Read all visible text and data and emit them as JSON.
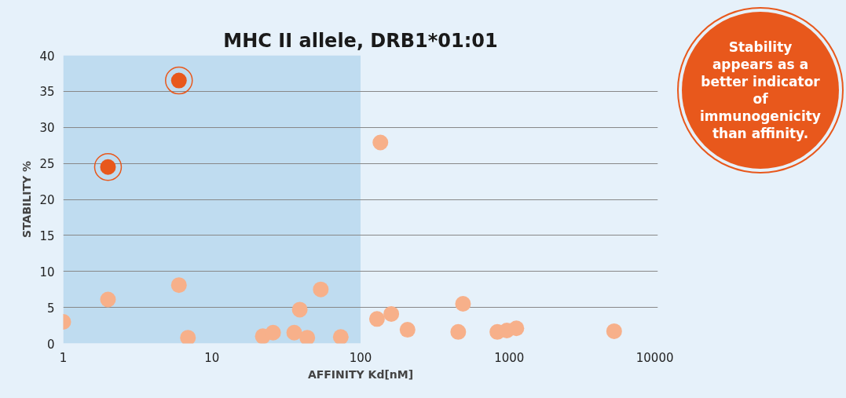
{
  "chart_data": {
    "type": "scatter",
    "title": "MHC II allele, DRB1*01:01",
    "xlabel": "AFFINITY Kd[nM]",
    "ylabel": "STABILITY %",
    "log": "x",
    "xlim": [
      1,
      10000
    ],
    "xticks": [
      1,
      10,
      100,
      1000,
      10000
    ],
    "ylim": [
      0,
      40
    ],
    "yticks": [
      0,
      5,
      10,
      15,
      20,
      25,
      30,
      35,
      40
    ],
    "grid": "y",
    "marker": "circle",
    "bands": [
      {
        "axis": "x",
        "from": 1,
        "to": 100,
        "label": null,
        "color": "#bfdcf0"
      }
    ],
    "annotations": [
      "Stability appears as a better indicator of immunogenicity than affinity."
    ],
    "series": [
      {
        "color": "#f7b08a",
        "x": [
          1,
          2,
          6,
          6.9,
          22,
          25.8,
          35.8,
          39,
          43.8,
          54,
          73.6,
          129,
          136,
          161,
          207,
          454,
          489,
          832,
          964,
          1117,
          5080
        ],
        "values": [
          3,
          6.1,
          8.1,
          0.8,
          1.0,
          1.5,
          1.5,
          4.7,
          0.8,
          7.5,
          0.9,
          3.4,
          27.9,
          4.1,
          1.9,
          1.6,
          5.5,
          1.6,
          1.8,
          2.1,
          1.7
        ]
      },
      {
        "color": "#e8581c",
        "x": [
          2,
          6
        ],
        "values": [
          24.5,
          36.5
        ]
      }
    ]
  }
}
